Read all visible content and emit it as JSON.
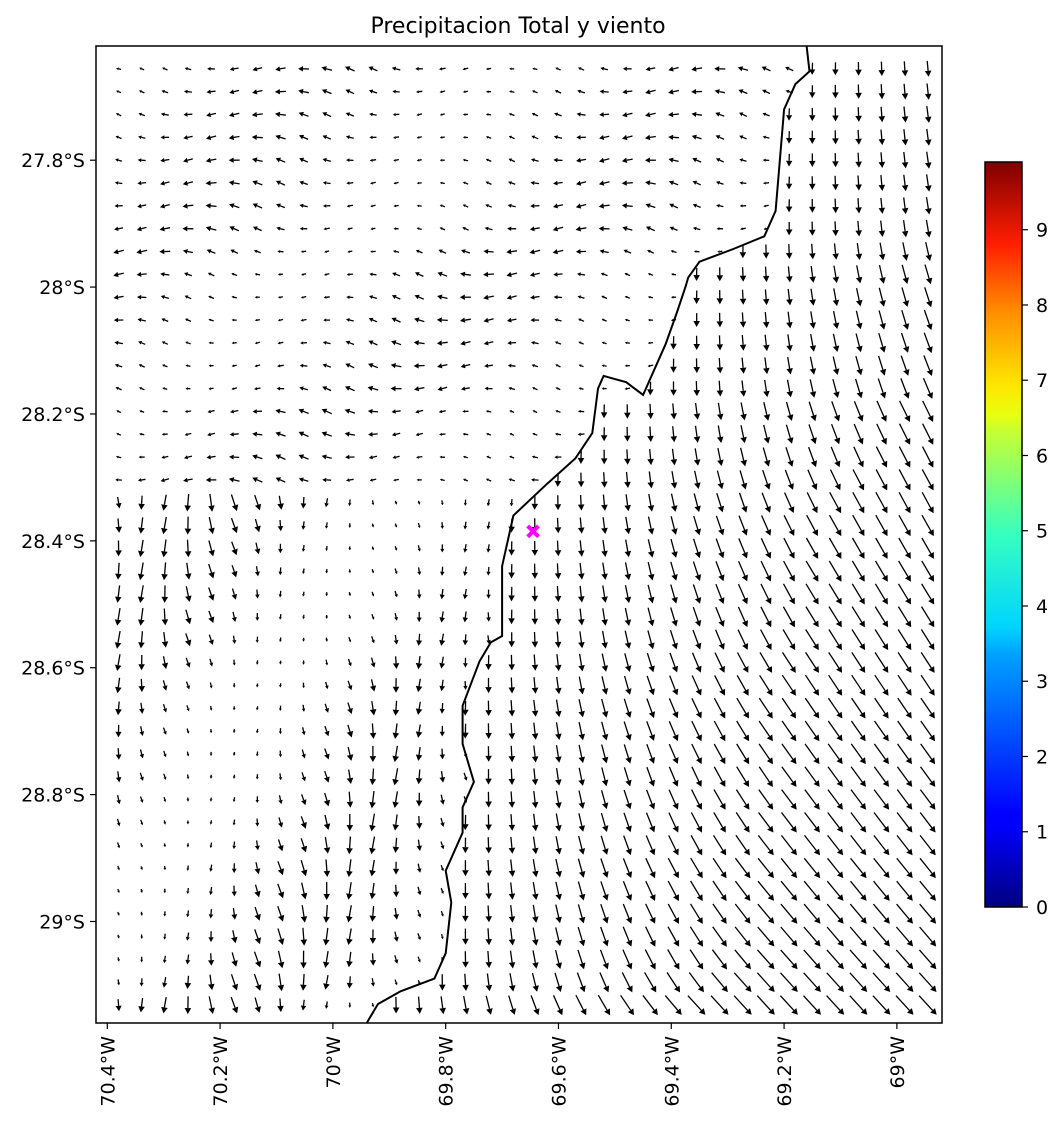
{
  "figure": {
    "title": "Precipitacion Total y viento"
  },
  "map": {
    "lon_range": [
      -70.42,
      -68.92
    ],
    "lat_range": [
      -29.16,
      -27.62
    ],
    "lon_ticks": [
      {
        "value": -70.4,
        "label": "70.4°W"
      },
      {
        "value": -70.2,
        "label": "70.2°W"
      },
      {
        "value": -70.0,
        "label": "70°W"
      },
      {
        "value": -69.8,
        "label": "69.8°W"
      },
      {
        "value": -69.6,
        "label": "69.6°W"
      },
      {
        "value": -69.4,
        "label": "69.4°W"
      },
      {
        "value": -69.2,
        "label": "69.2°W"
      },
      {
        "value": -69.0,
        "label": "69°W"
      }
    ],
    "lat_ticks": [
      {
        "value": -27.8,
        "label": "27.8°S"
      },
      {
        "value": -28.0,
        "label": "28°S"
      },
      {
        "value": -28.2,
        "label": "28.2°S"
      },
      {
        "value": -28.4,
        "label": "28.4°S"
      },
      {
        "value": -28.6,
        "label": "28.6°S"
      },
      {
        "value": -28.8,
        "label": "28.8°S"
      },
      {
        "value": -29.0,
        "label": "29°S"
      }
    ],
    "coastline": [
      [
        -69.16,
        -27.62
      ],
      [
        -69.155,
        -27.66
      ],
      [
        -69.18,
        -27.68
      ],
      [
        -69.2,
        -27.72
      ],
      [
        -69.215,
        -27.88
      ],
      [
        -69.235,
        -27.92
      ],
      [
        -69.29,
        -27.94
      ],
      [
        -69.35,
        -27.96
      ],
      [
        -69.37,
        -27.985
      ],
      [
        -69.375,
        -28.0
      ],
      [
        -69.39,
        -28.04
      ],
      [
        -69.41,
        -28.09
      ],
      [
        -69.45,
        -28.17
      ],
      [
        -69.48,
        -28.15
      ],
      [
        -69.52,
        -28.14
      ],
      [
        -69.53,
        -28.16
      ],
      [
        -69.54,
        -28.23
      ],
      [
        -69.57,
        -28.27
      ],
      [
        -69.62,
        -28.31
      ],
      [
        -69.68,
        -28.36
      ],
      [
        -69.7,
        -28.44
      ],
      [
        -69.7,
        -28.55
      ],
      [
        -69.72,
        -28.56
      ],
      [
        -69.74,
        -28.59
      ],
      [
        -69.77,
        -28.66
      ],
      [
        -69.77,
        -28.72
      ],
      [
        -69.75,
        -28.78
      ],
      [
        -69.77,
        -28.82
      ],
      [
        -69.77,
        -28.86
      ],
      [
        -69.8,
        -28.92
      ],
      [
        -69.79,
        -28.97
      ],
      [
        -69.8,
        -29.05
      ],
      [
        -69.82,
        -29.09
      ],
      [
        -69.88,
        -29.11
      ],
      [
        -69.92,
        -29.13
      ],
      [
        -69.94,
        -29.16
      ]
    ],
    "station_marker": {
      "lon": -69.645,
      "lat": -28.385,
      "color": "#ff00ff"
    },
    "wind": {
      "grid": {
        "lon_start": -70.38,
        "lon_step": 0.041,
        "lat_start": -27.62,
        "lat_step": -0.036,
        "nx": 36,
        "ny": 43
      },
      "arrow_color": "#000000"
    }
  },
  "colorbar": {
    "cmap": "jet",
    "range": [
      0,
      9.9
    ],
    "ticks": [
      {
        "value": 0,
        "label": "0"
      },
      {
        "value": 1,
        "label": "1"
      },
      {
        "value": 2,
        "label": "2"
      },
      {
        "value": 3,
        "label": "3"
      },
      {
        "value": 4,
        "label": "4"
      },
      {
        "value": 5,
        "label": "5"
      },
      {
        "value": 6,
        "label": "6"
      },
      {
        "value": 7,
        "label": "7"
      },
      {
        "value": 8,
        "label": "8"
      },
      {
        "value": 9,
        "label": "9"
      }
    ]
  }
}
